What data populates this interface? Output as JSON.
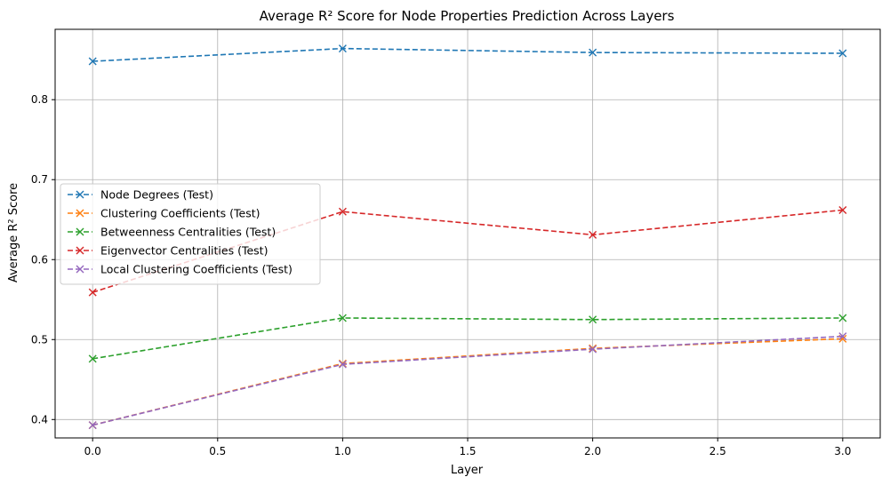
{
  "chart_data": {
    "type": "line",
    "title": "Average R² Score for Node Properties Prediction Across Layers",
    "xlabel": "Layer",
    "ylabel": "Average R² Score",
    "x": [
      0,
      1,
      2,
      3
    ],
    "xlim": [
      -0.15,
      3.15
    ],
    "ylim": [
      0.377,
      0.888
    ],
    "xticks": [
      0.0,
      0.5,
      1.0,
      1.5,
      2.0,
      2.5,
      3.0
    ],
    "xtick_labels": [
      "0.0",
      "0.5",
      "1.0",
      "1.5",
      "2.0",
      "2.5",
      "3.0"
    ],
    "yticks": [
      0.4,
      0.5,
      0.6,
      0.7,
      0.8
    ],
    "ytick_labels": [
      "0.4",
      "0.5",
      "0.6",
      "0.7",
      "0.8"
    ],
    "grid": true,
    "legend_position": "center-left",
    "line_style": "dashed",
    "marker": "x",
    "series": [
      {
        "name": "Node Degrees (Test)",
        "color": "#1f77b4",
        "values": [
          0.848,
          0.864,
          0.859,
          0.858
        ]
      },
      {
        "name": "Clustering Coefficients (Test)",
        "color": "#ff7f0e",
        "values": [
          0.393,
          0.47,
          0.489,
          0.501
        ]
      },
      {
        "name": "Betweenness Centralities (Test)",
        "color": "#2ca02c",
        "values": [
          0.476,
          0.527,
          0.525,
          0.527
        ]
      },
      {
        "name": "Eigenvector Centralities (Test)",
        "color": "#d62728",
        "values": [
          0.559,
          0.66,
          0.631,
          0.662
        ]
      },
      {
        "name": "Local Clustering Coefficients (Test)",
        "color": "#9467bd",
        "values": [
          0.393,
          0.469,
          0.488,
          0.504
        ]
      }
    ]
  }
}
